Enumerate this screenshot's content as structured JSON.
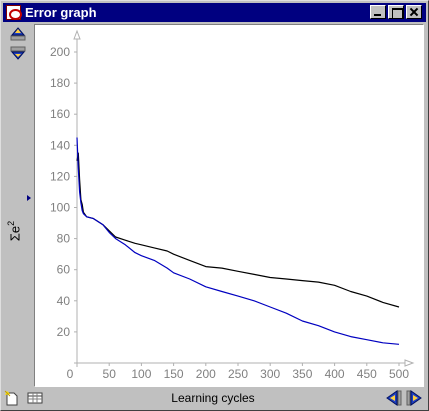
{
  "window": {
    "title": "Error graph"
  },
  "icons": {
    "app": "java-cup-icon",
    "minimize": "minimize-icon",
    "maximize": "maximize-icon",
    "close": "close-icon",
    "move_up": "up-arrow-icon",
    "move_down": "down-arrow-icon",
    "new": "new-document-icon",
    "table": "table-icon",
    "prev": "left-arrow-icon",
    "next": "right-arrow-icon"
  },
  "colors": {
    "titlebar": "#000080",
    "series_black": "#000000",
    "series_blue": "#0000c0",
    "axis": "#b0b0b0",
    "tick_text": "#808080"
  },
  "chart_data": {
    "type": "line",
    "xlabel": "Learning cycles",
    "ylabel": "Σe",
    "ylabel_sup": "2",
    "xlim": [
      0,
      500
    ],
    "ylim": [
      0,
      200
    ],
    "xticks": [
      0,
      50,
      100,
      150,
      200,
      250,
      300,
      350,
      400,
      450,
      500
    ],
    "yticks": [
      20,
      40,
      60,
      80,
      100,
      120,
      140,
      160,
      180,
      200
    ],
    "grid": false,
    "series": [
      {
        "color": "#000000",
        "points": [
          [
            0,
            130
          ],
          [
            2,
            135
          ],
          [
            4,
            118
          ],
          [
            6,
            105
          ],
          [
            8,
            102
          ],
          [
            10,
            97
          ],
          [
            15,
            94
          ],
          [
            25,
            93
          ],
          [
            40,
            89
          ],
          [
            50,
            85
          ],
          [
            60,
            81
          ],
          [
            75,
            79
          ],
          [
            90,
            77
          ],
          [
            100,
            76
          ],
          [
            120,
            74
          ],
          [
            140,
            72
          ],
          [
            150,
            70
          ],
          [
            175,
            66
          ],
          [
            200,
            62
          ],
          [
            225,
            61
          ],
          [
            250,
            59
          ],
          [
            275,
            57
          ],
          [
            300,
            55
          ],
          [
            325,
            54
          ],
          [
            350,
            53
          ],
          [
            375,
            52
          ],
          [
            400,
            50
          ],
          [
            425,
            46
          ],
          [
            450,
            43
          ],
          [
            475,
            39
          ],
          [
            500,
            36
          ]
        ]
      },
      {
        "color": "#0000c0",
        "points": [
          [
            0,
            145
          ],
          [
            2,
            125
          ],
          [
            4,
            110
          ],
          [
            6,
            103
          ],
          [
            8,
            98
          ],
          [
            10,
            96
          ],
          [
            15,
            94
          ],
          [
            25,
            93
          ],
          [
            40,
            89
          ],
          [
            50,
            84
          ],
          [
            60,
            80
          ],
          [
            75,
            76
          ],
          [
            90,
            71
          ],
          [
            100,
            69
          ],
          [
            120,
            66
          ],
          [
            140,
            61
          ],
          [
            150,
            58
          ],
          [
            175,
            54
          ],
          [
            200,
            49
          ],
          [
            225,
            46
          ],
          [
            250,
            43
          ],
          [
            275,
            40
          ],
          [
            300,
            36
          ],
          [
            325,
            32
          ],
          [
            350,
            27
          ],
          [
            375,
            24
          ],
          [
            400,
            20
          ],
          [
            425,
            17
          ],
          [
            450,
            15
          ],
          [
            475,
            13
          ],
          [
            500,
            12
          ]
        ]
      }
    ]
  }
}
